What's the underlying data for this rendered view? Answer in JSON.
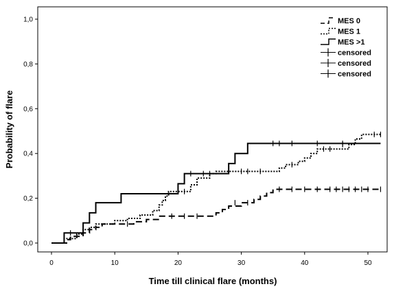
{
  "chart_data": {
    "type": "line",
    "subtype": "kaplan-meier-step",
    "title": "",
    "xlabel": "Time till clinical flare (months)",
    "ylabel": "Probability of flare",
    "xlim": [
      0,
      52
    ],
    "ylim": [
      0,
      1
    ],
    "x_ticks": [
      "0",
      "10",
      "20",
      "30",
      "40",
      "50"
    ],
    "y_ticks": [
      "0,0",
      "0,2",
      "0,4",
      "0,6",
      "0,8",
      "1,0"
    ],
    "grid": false,
    "legend_position": "top-right",
    "legend": [
      {
        "label": "MES 0",
        "kind": "line",
        "style": "dashed"
      },
      {
        "label": "MES 1",
        "kind": "line",
        "style": "dotted"
      },
      {
        "label": "MES >1",
        "kind": "line",
        "style": "solid"
      },
      {
        "label": "censored",
        "kind": "censor"
      },
      {
        "label": "censored",
        "kind": "censor"
      },
      {
        "label": "censored",
        "kind": "censor"
      }
    ],
    "series": [
      {
        "name": "MES 0",
        "style": "dashed",
        "end_x": 52,
        "steps": [
          [
            0,
            0
          ],
          [
            2.5,
            0.015
          ],
          [
            3,
            0.03
          ],
          [
            5,
            0.045
          ],
          [
            6,
            0.06
          ],
          [
            7,
            0.07
          ],
          [
            8,
            0.085
          ],
          [
            13,
            0.095
          ],
          [
            15,
            0.105
          ],
          [
            17,
            0.12
          ],
          [
            26,
            0.135
          ],
          [
            27,
            0.15
          ],
          [
            28,
            0.165
          ],
          [
            30,
            0.18
          ],
          [
            32,
            0.195
          ],
          [
            33,
            0.21
          ],
          [
            34,
            0.225
          ],
          [
            35,
            0.24
          ]
        ],
        "censored": [
          [
            12,
            0.085
          ],
          [
            19,
            0.12
          ],
          [
            21,
            0.12
          ],
          [
            23,
            0.12
          ],
          [
            29,
            0.18
          ],
          [
            31,
            0.18
          ],
          [
            36,
            0.24
          ],
          [
            38,
            0.24
          ],
          [
            40,
            0.24
          ],
          [
            42,
            0.24
          ],
          [
            44,
            0.24
          ],
          [
            45,
            0.24
          ],
          [
            46,
            0.24
          ],
          [
            47,
            0.24
          ],
          [
            48,
            0.24
          ],
          [
            49,
            0.24
          ],
          [
            50,
            0.24
          ],
          [
            52,
            0.24
          ]
        ]
      },
      {
        "name": "MES 1",
        "style": "dotted",
        "end_x": 52,
        "steps": [
          [
            0,
            0
          ],
          [
            2,
            0.02
          ],
          [
            4,
            0.04
          ],
          [
            5,
            0.06
          ],
          [
            6,
            0.07
          ],
          [
            7,
            0.085
          ],
          [
            10,
            0.1
          ],
          [
            12,
            0.11
          ],
          [
            14,
            0.125
          ],
          [
            16,
            0.145
          ],
          [
            17,
            0.17
          ],
          [
            17.5,
            0.19
          ],
          [
            18,
            0.21
          ],
          [
            18.5,
            0.23
          ],
          [
            22,
            0.26
          ],
          [
            23,
            0.29
          ],
          [
            25,
            0.31
          ],
          [
            26,
            0.32
          ],
          [
            36,
            0.335
          ],
          [
            37,
            0.35
          ],
          [
            39,
            0.365
          ],
          [
            40,
            0.38
          ],
          [
            41,
            0.4
          ],
          [
            42,
            0.42
          ],
          [
            47,
            0.44
          ],
          [
            48,
            0.465
          ],
          [
            49,
            0.485
          ]
        ],
        "censored": [
          [
            21,
            0.23
          ],
          [
            28,
            0.32
          ],
          [
            30,
            0.32
          ],
          [
            31,
            0.32
          ],
          [
            33,
            0.32
          ],
          [
            38,
            0.35
          ],
          [
            43,
            0.42
          ],
          [
            44,
            0.42
          ],
          [
            46,
            0.44
          ],
          [
            51,
            0.485
          ],
          [
            52,
            0.485
          ]
        ]
      },
      {
        "name": "MES >1",
        "style": "solid",
        "end_x": 52,
        "steps": [
          [
            0,
            0
          ],
          [
            2,
            0.045
          ],
          [
            5,
            0.09
          ],
          [
            6,
            0.135
          ],
          [
            7,
            0.18
          ],
          [
            11,
            0.22
          ],
          [
            20,
            0.265
          ],
          [
            21,
            0.31
          ],
          [
            28,
            0.355
          ],
          [
            29,
            0.4
          ],
          [
            31,
            0.445
          ]
        ],
        "censored": [
          [
            3,
            0.045
          ],
          [
            22,
            0.31
          ],
          [
            24,
            0.31
          ],
          [
            25,
            0.31
          ],
          [
            35,
            0.445
          ],
          [
            36,
            0.445
          ],
          [
            38,
            0.445
          ],
          [
            42,
            0.445
          ],
          [
            46,
            0.445
          ]
        ]
      }
    ]
  }
}
